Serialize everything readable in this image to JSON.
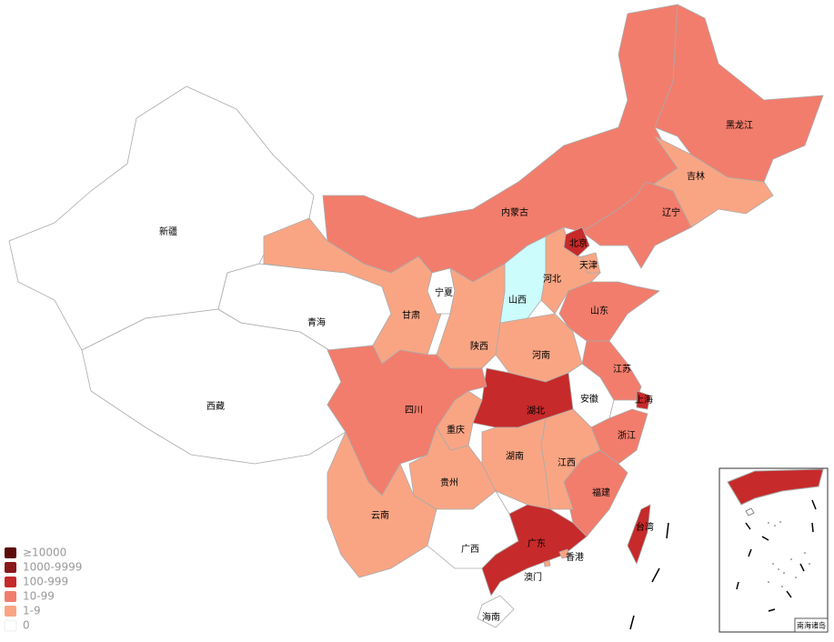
{
  "map": {
    "legend": [
      {
        "label": "≥10000",
        "color": "#5c0c0c"
      },
      {
        "label": "1000-9999",
        "color": "#8a1a1a"
      },
      {
        "label": "100-999",
        "color": "#c62a2a"
      },
      {
        "label": "10-99",
        "color": "#f27d6c"
      },
      {
        "label": "1-9",
        "color": "#f9a584"
      },
      {
        "label": "0",
        "color": "#ffffff"
      }
    ],
    "highlight_color": "#ccfcfc",
    "regions": [
      {
        "name": "新疆",
        "range": "0"
      },
      {
        "name": "西藏",
        "range": "0"
      },
      {
        "name": "青海",
        "range": "0"
      },
      {
        "name": "甘肃",
        "range": "1-9"
      },
      {
        "name": "内蒙古",
        "range": "10-99"
      },
      {
        "name": "黑龙江",
        "range": "10-99"
      },
      {
        "name": "吉林",
        "range": "1-9"
      },
      {
        "name": "辽宁",
        "range": "10-99"
      },
      {
        "name": "北京",
        "range": "100-999"
      },
      {
        "name": "天津",
        "range": "1-9"
      },
      {
        "name": "河北",
        "range": "1-9"
      },
      {
        "name": "山西",
        "range": "1-9",
        "highlighted": true
      },
      {
        "name": "宁夏",
        "range": "0"
      },
      {
        "name": "陕西",
        "range": "1-9"
      },
      {
        "name": "河南",
        "range": "1-9"
      },
      {
        "name": "山东",
        "range": "10-99"
      },
      {
        "name": "江苏",
        "range": "10-99"
      },
      {
        "name": "安徽",
        "range": "0"
      },
      {
        "name": "上海",
        "range": "100-999"
      },
      {
        "name": "浙江",
        "range": "10-99"
      },
      {
        "name": "福建",
        "range": "10-99"
      },
      {
        "name": "江西",
        "range": "1-9"
      },
      {
        "name": "湖北",
        "range": "100-999"
      },
      {
        "name": "湖南",
        "range": "1-9"
      },
      {
        "name": "重庆",
        "range": "1-9"
      },
      {
        "name": "四川",
        "range": "10-99"
      },
      {
        "name": "贵州",
        "range": "1-9"
      },
      {
        "name": "云南",
        "range": "1-9"
      },
      {
        "name": "广西",
        "range": "0"
      },
      {
        "name": "广东",
        "range": "100-999"
      },
      {
        "name": "海南",
        "range": "0"
      },
      {
        "name": "台湾",
        "range": "100-999"
      },
      {
        "name": "香港",
        "range": "1-9"
      },
      {
        "name": "澳门",
        "range": "1-9"
      }
    ],
    "inset_label": "南海诸岛"
  }
}
